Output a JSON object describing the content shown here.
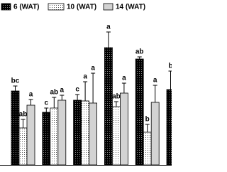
{
  "chart_data": {
    "type": "bar",
    "categories": [
      null,
      null,
      null,
      null,
      null,
      null
    ],
    "series": [
      {
        "name": "6 (WAT)",
        "color": "#000000",
        "values": [
          104,
          74,
          91,
          165,
          149,
          106
        ],
        "errors": [
          7,
          6,
          8,
          22,
          3,
          26
        ],
        "letters": [
          "bc",
          "c",
          "c",
          "a",
          "ab",
          "b"
        ]
      },
      {
        "name": "10 (WAT)",
        "color": "#ffffff",
        "values": [
          52,
          80,
          90,
          82,
          46,
          0
        ],
        "errors": [
          12,
          15,
          27,
          7,
          11,
          0
        ],
        "letters": [
          "ab",
          "ab",
          "a",
          "ab",
          "b",
          null
        ]
      },
      {
        "name": "14 (WAT)",
        "color": "#d3d3d3",
        "values": [
          84,
          91,
          87,
          101,
          88,
          0
        ],
        "errors": [
          8,
          7,
          42,
          14,
          24,
          0
        ],
        "letters": [
          "a",
          "a",
          "a",
          "a",
          "a",
          null
        ]
      }
    ],
    "ylim": [
      0,
      200
    ]
  }
}
